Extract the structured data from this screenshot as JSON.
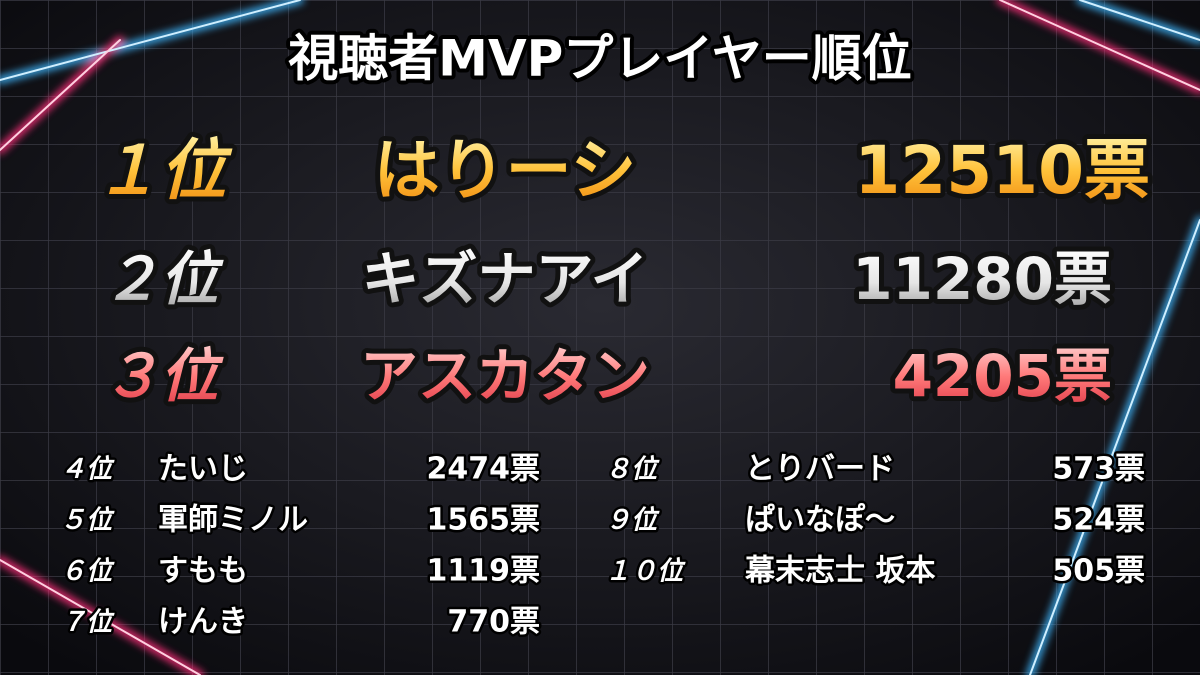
{
  "title": "視聴者MVPプレイヤー順位",
  "top": [
    {
      "rank": "１位",
      "name": "はりーシ",
      "votes": "12510票"
    },
    {
      "rank": "２位",
      "name": "キズナアイ",
      "votes": "11280票"
    },
    {
      "rank": "３位",
      "name": "アスカタン",
      "votes": "4205票"
    }
  ],
  "others": [
    {
      "rank": "４位",
      "name": "たいじ",
      "votes": "2474票"
    },
    {
      "rank": "５位",
      "name": "軍師ミノル",
      "votes": "1565票"
    },
    {
      "rank": "６位",
      "name": "すもも",
      "votes": "1119票"
    },
    {
      "rank": "７位",
      "name": "けんき",
      "votes": "770票"
    },
    {
      "rank": "８位",
      "name": "とりバード",
      "votes": "573票"
    },
    {
      "rank": "９位",
      "name": "ぱいなぽ～",
      "votes": "524票"
    },
    {
      "rank": "１０位",
      "name": "幕末志士 坂本",
      "votes": "505票"
    }
  ]
}
